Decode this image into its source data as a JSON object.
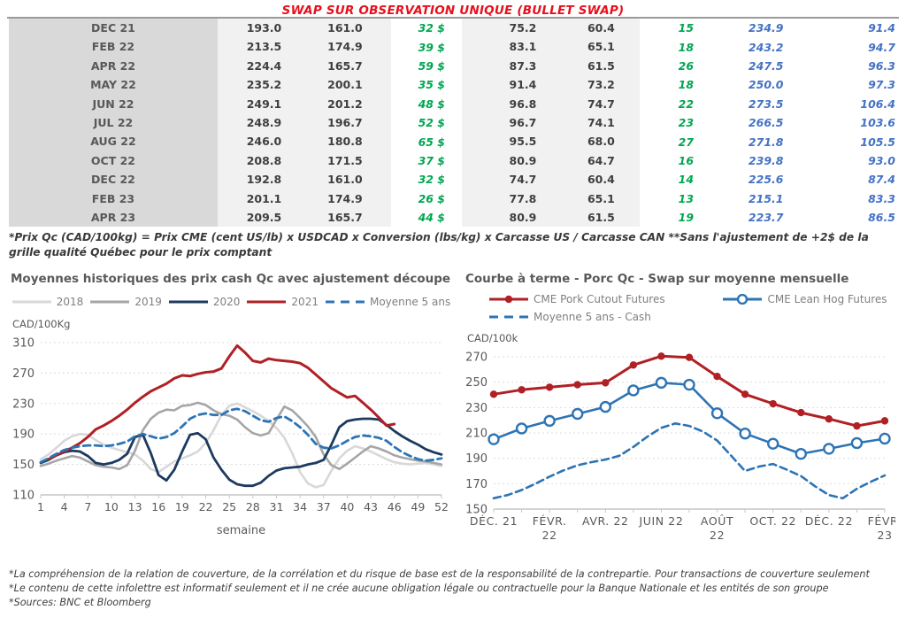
{
  "title": "SWAP SUR OBSERVATION UNIQUE (BULLET SWAP)",
  "table": {
    "rows": [
      [
        "DEC 21",
        "193.0",
        "161.0",
        "32 $",
        "75.2",
        "60.4",
        "15",
        "234.9",
        "91.4"
      ],
      [
        "FEB 22",
        "213.5",
        "174.9",
        "39 $",
        "83.1",
        "65.1",
        "18",
        "243.2",
        "94.7"
      ],
      [
        "APR 22",
        "224.4",
        "165.7",
        "59 $",
        "87.3",
        "61.5",
        "26",
        "247.5",
        "96.3"
      ],
      [
        "MAY 22",
        "235.2",
        "200.1",
        "35 $",
        "91.4",
        "73.2",
        "18",
        "250.0",
        "97.3"
      ],
      [
        "JUN 22",
        "249.1",
        "201.2",
        "48 $",
        "96.8",
        "74.7",
        "22",
        "273.5",
        "106.4"
      ],
      [
        "JUL 22",
        "248.9",
        "196.7",
        "52 $",
        "96.7",
        "74.1",
        "23",
        "266.5",
        "103.6"
      ],
      [
        "AUG 22",
        "246.0",
        "180.8",
        "65 $",
        "95.5",
        "68.0",
        "27",
        "271.8",
        "105.5"
      ],
      [
        "OCT 22",
        "208.8",
        "171.5",
        "37 $",
        "80.9",
        "64.7",
        "16",
        "239.8",
        "93.0"
      ],
      [
        "DEC 22",
        "192.8",
        "161.0",
        "32 $",
        "74.7",
        "60.4",
        "14",
        "225.6",
        "87.4"
      ],
      [
        "FEB 23",
        "201.1",
        "174.9",
        "26 $",
        "77.8",
        "65.1",
        "13",
        "215.1",
        "83.3"
      ],
      [
        "APR 23",
        "209.5",
        "165.7",
        "44 $",
        "80.9",
        "61.5",
        "19",
        "223.7",
        "86.5"
      ]
    ]
  },
  "table_note": "*Prix Qc (CAD/100kg) = Prix CME (cent US/lb) x USDCAD x Conversion (lbs/kg) x Carcasse US / Carcasse CAN **Sans l'ajustement de +2$ de la grille qualité Québec pour le prix comptant",
  "footnotes": [
    "*La compréhension de la relation de couverture, de la corrélation et du risque de base est de la responsabilité de la contrepartie. Pour transactions de couverture seulement",
    "*Le contenu de cette infolettre est informatif seulement et il ne crée aucune obligation légale ou contractuelle pour la Banque Nationale et les entités de son groupe",
    "*Sources: BNC et Bloomberg"
  ],
  "chart_data": [
    {
      "type": "line",
      "title": "Moyennes historiques des prix cash Qc avec ajustement découpe",
      "ylabel": "CAD/100Kg",
      "xlabel": "semaine",
      "ylim": [
        110,
        310
      ],
      "yticks": [
        110,
        150,
        190,
        230,
        270,
        310
      ],
      "xmin": 1,
      "xmax": 52,
      "xticks": [
        1,
        4,
        7,
        10,
        13,
        16,
        19,
        22,
        25,
        28,
        31,
        34,
        37,
        40,
        43,
        46,
        49,
        52
      ],
      "grid": "dashed-horizontal",
      "legend_position": "top-center",
      "series": [
        {
          "name": "2018",
          "color": "#d8d8d8",
          "width": 2.6,
          "values": [
            157,
            163,
            172,
            181,
            187,
            190,
            189,
            182,
            176,
            172,
            169,
            166,
            163,
            155,
            144,
            140,
            147,
            154,
            158,
            162,
            167,
            178,
            195,
            215,
            227,
            230,
            225,
            220,
            214,
            207,
            198,
            185,
            165,
            140,
            125,
            120,
            123,
            142,
            158,
            168,
            174,
            171,
            167,
            162,
            157,
            153,
            151,
            150,
            151,
            152,
            150,
            148
          ]
        },
        {
          "name": "2019",
          "color": "#a6a6a6",
          "width": 2.6,
          "values": [
            148,
            151,
            155,
            158,
            161,
            159,
            154,
            149,
            147,
            146,
            144,
            149,
            168,
            195,
            210,
            218,
            222,
            221,
            227,
            228,
            231,
            228,
            221,
            216,
            214,
            209,
            199,
            191,
            188,
            191,
            209,
            226,
            221,
            211,
            200,
            186,
            163,
            149,
            144,
            151,
            159,
            167,
            174,
            171,
            167,
            162,
            159,
            157,
            155,
            154,
            152,
            150
          ]
        },
        {
          "name": "2020",
          "color": "#1c3a5e",
          "width": 2.8,
          "values": [
            152,
            156,
            162,
            166,
            168,
            167,
            161,
            152,
            150,
            152,
            156,
            164,
            186,
            189,
            165,
            136,
            129,
            143,
            167,
            189,
            191,
            183,
            159,
            143,
            130,
            124,
            122,
            122,
            126,
            135,
            142,
            145,
            146,
            147,
            150,
            152,
            156,
            176,
            199,
            207,
            209,
            210,
            210,
            209,
            202,
            194,
            187,
            181,
            176,
            170,
            166,
            163
          ]
        },
        {
          "name": "2021",
          "color": "#b02025",
          "width": 3,
          "values": [
            null,
            157,
            162,
            167,
            172,
            178,
            186,
            196,
            201,
            207,
            214,
            222,
            231,
            239,
            246,
            251,
            256,
            263,
            267,
            266,
            269,
            271,
            272,
            276,
            292,
            306,
            297,
            286,
            284,
            289,
            287,
            286,
            285,
            283,
            277,
            268,
            259,
            250,
            244,
            238,
            240,
            231,
            222,
            212,
            201,
            203,
            null,
            null,
            null,
            null,
            null,
            null
          ]
        },
        {
          "name": "Moyenne 5 ans",
          "color": "#2d74b5",
          "width": 2.8,
          "dash": "8 5",
          "values": [
            153,
            158,
            164,
            169,
            172,
            174,
            175,
            175,
            174,
            175,
            177,
            180,
            187,
            190,
            187,
            184,
            186,
            191,
            200,
            210,
            215,
            217,
            215,
            215,
            221,
            223,
            220,
            214,
            208,
            206,
            211,
            213,
            207,
            199,
            189,
            177,
            172,
            171,
            175,
            181,
            186,
            188,
            187,
            185,
            181,
            173,
            166,
            161,
            157,
            155,
            156,
            158
          ]
        }
      ]
    },
    {
      "type": "line",
      "title": "Courbe à terme - Porc Qc - Swap sur moyenne mensuelle",
      "ylabel": "CAD/100k",
      "ylim": [
        150,
        270
      ],
      "yticks": [
        150,
        170,
        190,
        210,
        230,
        250,
        270
      ],
      "xmin": 0,
      "xmax": 14,
      "minor_ticks": 14,
      "xtick_labels": [
        {
          "pos": 0,
          "lines": [
            "DÉC. 21"
          ]
        },
        {
          "pos": 2,
          "lines": [
            "FÉVR.",
            "22"
          ]
        },
        {
          "pos": 4,
          "lines": [
            "AVR. 22"
          ]
        },
        {
          "pos": 6,
          "lines": [
            "JUIN 22"
          ]
        },
        {
          "pos": 8,
          "lines": [
            "AOÛT",
            "22"
          ]
        },
        {
          "pos": 10,
          "lines": [
            "OCT. 22"
          ]
        },
        {
          "pos": 12,
          "lines": [
            "DÉC. 22"
          ]
        },
        {
          "pos": 14,
          "lines": [
            "FÉVR.",
            "23"
          ]
        }
      ],
      "grid": "dashed-horizontal",
      "legend_position": "top-left-2col",
      "series": [
        {
          "name": "CME Pork Cutout Futures",
          "color": "#b02025",
          "width": 3,
          "marker": "dot",
          "values": [
            240.5,
            244,
            246,
            248,
            249.5,
            263.5,
            270.5,
            269.5,
            254.5,
            240.5,
            233,
            226,
            221,
            215.5,
            219.5
          ]
        },
        {
          "name": "CME Lean Hog Futures",
          "color": "#2d74b5",
          "width": 2.6,
          "marker": "circle",
          "values": [
            205,
            213.5,
            219.5,
            225,
            230.5,
            243.5,
            249.5,
            248,
            225.5,
            209.5,
            201.5,
            193.5,
            197.5,
            202,
            205.5
          ]
        },
        {
          "name": "Moyenne 5 ans - Cash",
          "color": "#2d74b5",
          "width": 2.6,
          "dash": "8 5",
          "xstep": 0.5,
          "values": [
            158.5,
            161,
            165,
            170,
            175.5,
            180.5,
            184.5,
            187,
            189,
            192,
            199,
            207,
            214,
            217.5,
            215.5,
            211,
            204,
            192,
            180,
            183.5,
            185.5,
            181,
            176,
            168,
            161,
            158.5,
            166,
            171.5,
            176.5
          ]
        }
      ]
    }
  ]
}
